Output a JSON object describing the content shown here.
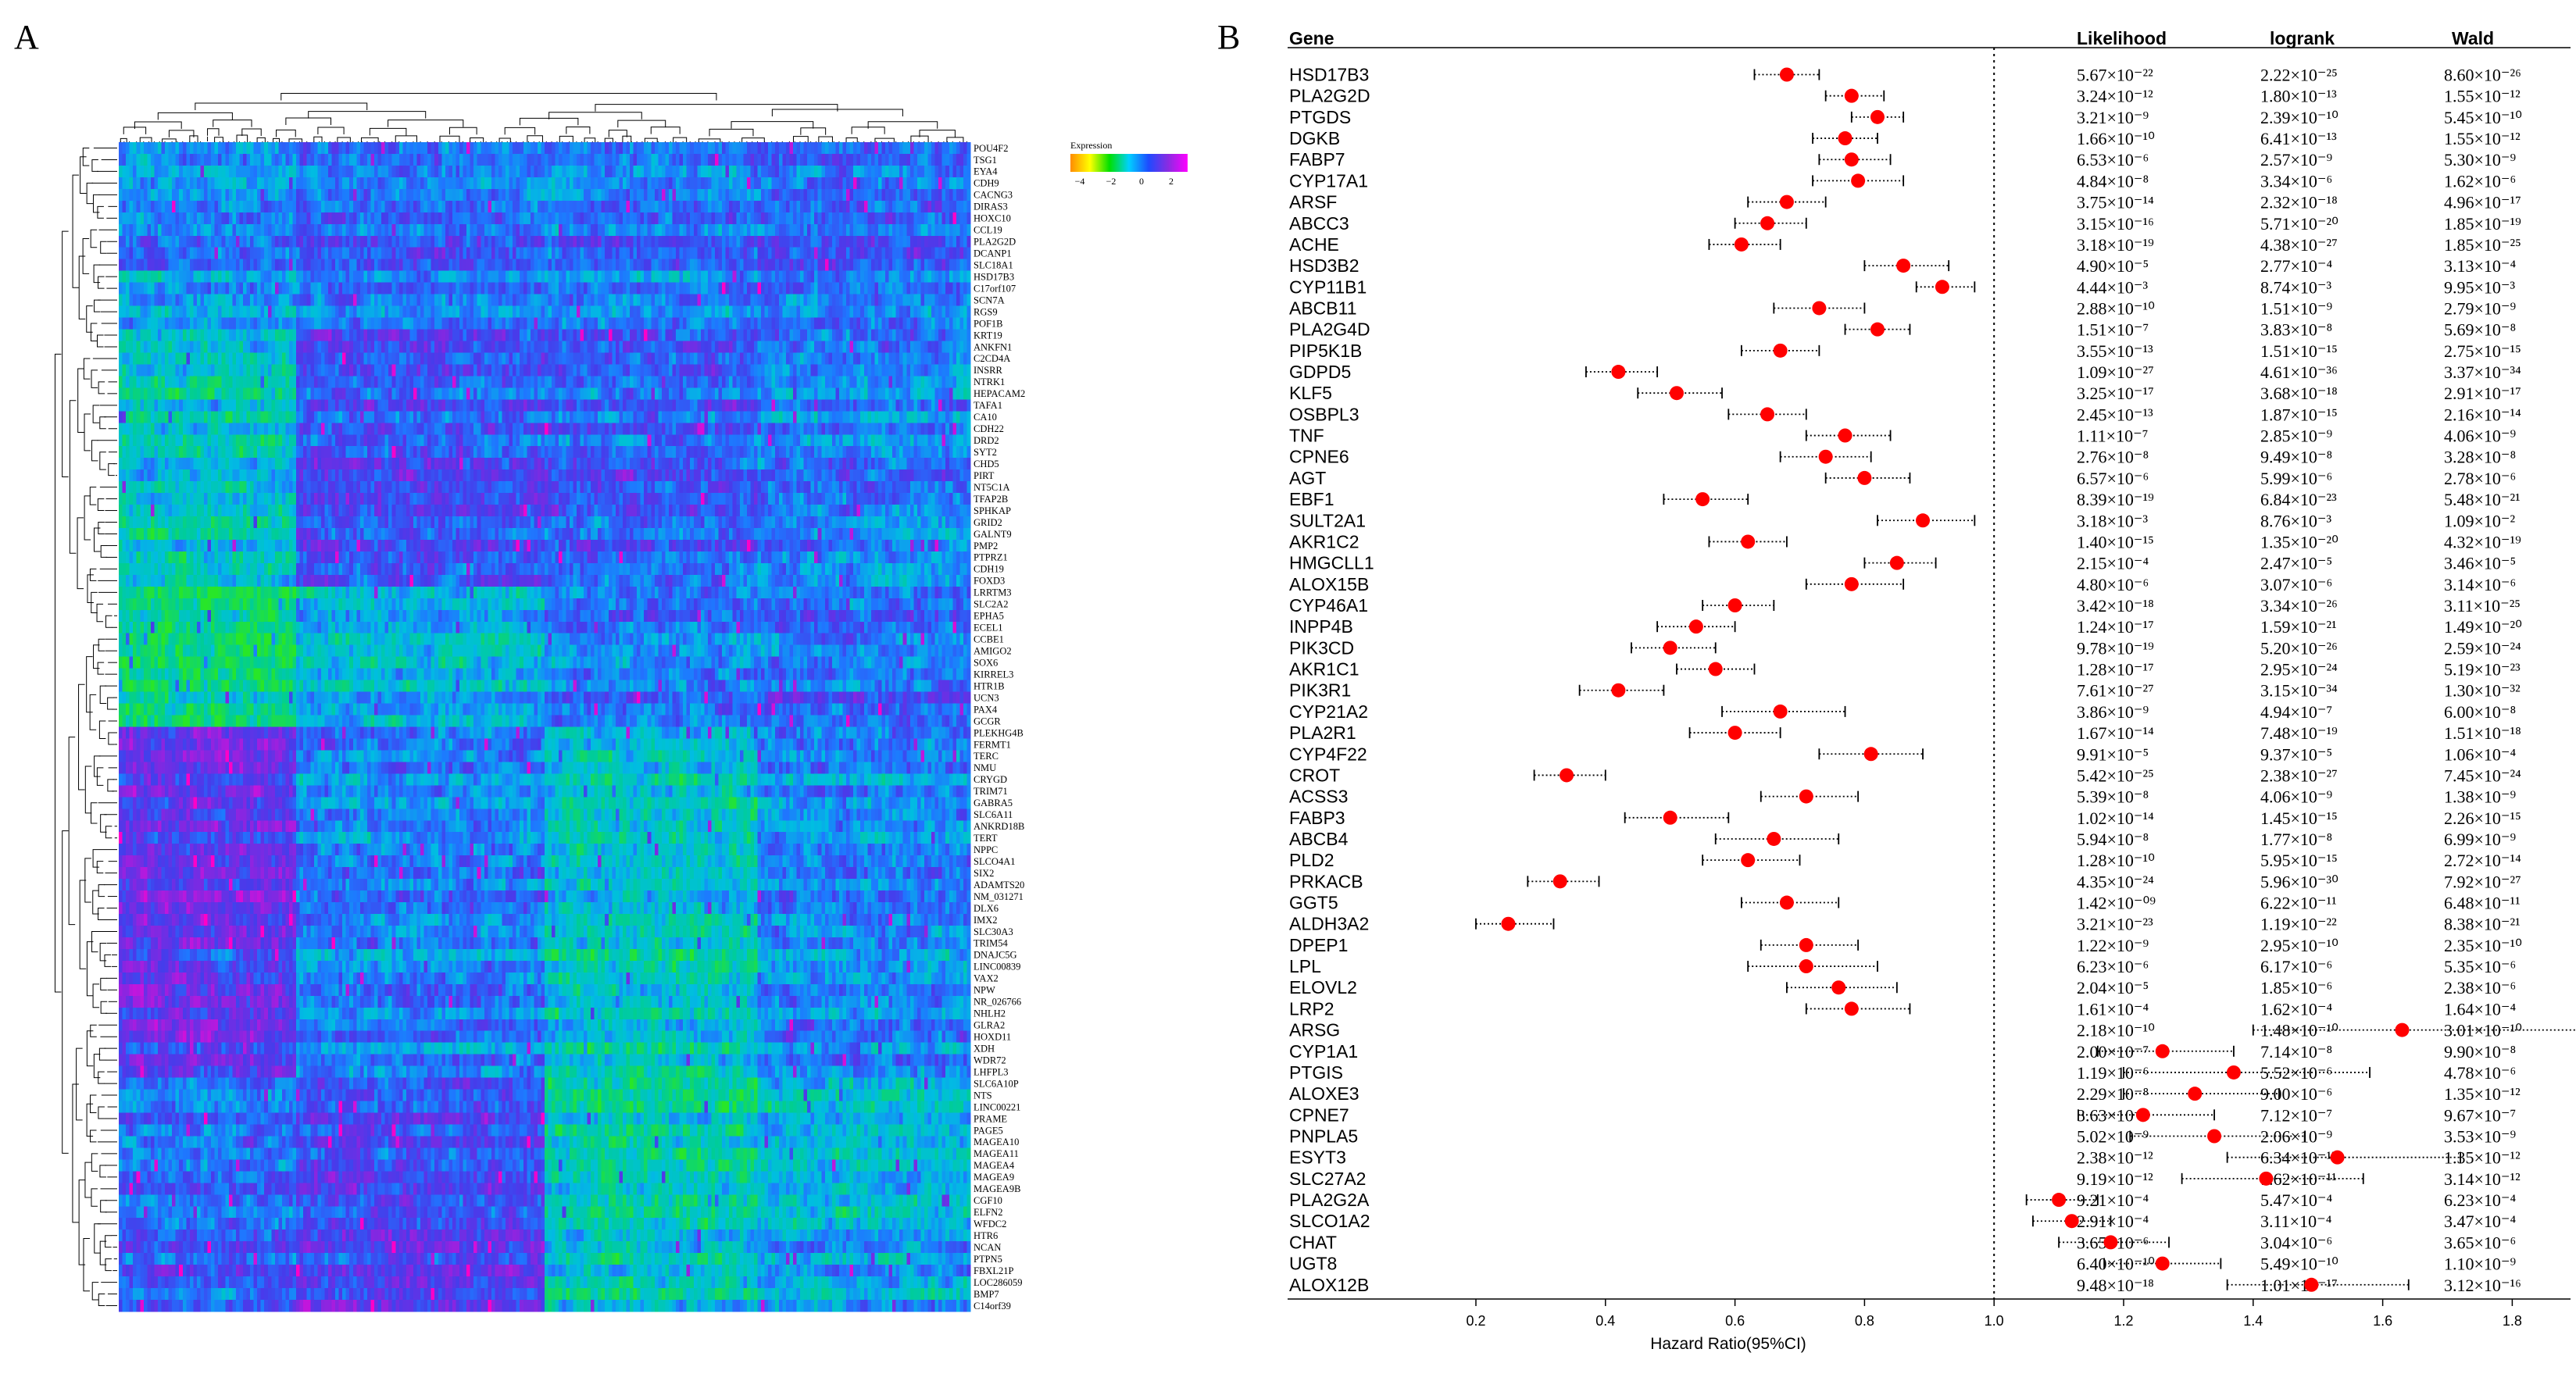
{
  "panels": {
    "a": "A",
    "b": "B"
  },
  "heatmap": {
    "legend": {
      "title": "Expression",
      "ticks": [
        "−4",
        "−2",
        "0",
        "2"
      ],
      "colors": [
        "#ff8c00",
        "#ffff00",
        "#00e000",
        "#00d0ff",
        "#1e4bff",
        "#8a2be2",
        "#ff00ff"
      ]
    },
    "genes": [
      "POU4F2",
      "TSG1",
      "EYA4",
      "CDH9",
      "CACNG3",
      "DIRAS3",
      "HOXC10",
      "CCL19",
      "PLA2G2D",
      "DCANP1",
      "SLC18A1",
      "HSD17B3",
      "C17orf107",
      "SCN7A",
      "RGS9",
      "POF1B",
      "KRT19",
      "ANKFN1",
      "C2CD4A",
      "INSRR",
      "NTRK1",
      "HEPACAM2",
      "TAFA1",
      "CA10",
      "CDH22",
      "DRD2",
      "SYT2",
      "CHD5",
      "PIRT",
      "NT5C1A",
      "TFAP2B",
      "SPHKAP",
      "GRID2",
      "GALNT9",
      "PMP2",
      "PTPRZ1",
      "CDH19",
      "FOXD3",
      "LRRTM3",
      "SLC2A2",
      "EPHA5",
      "ECEL1",
      "CCBE1",
      "AMIGO2",
      "SOX6",
      "KIRREL3",
      "HTR1B",
      "UCN3",
      "PAX4",
      "GCGR",
      "PLEKHG4B",
      "FERMT1",
      "TERC",
      "NMU",
      "CRYGD",
      "TRIM71",
      "GABRA5",
      "SLC6A11",
      "ANKRD18B",
      "TERT",
      "NPPC",
      "SLCO4A1",
      "SIX2",
      "ADAMTS20",
      "NM_031271",
      "DLX6",
      "IMX2",
      "SLC30A3",
      "TRIM54",
      "DNAJC5G",
      "LINC00839",
      "VAX2",
      "NPW",
      "NR_026766",
      "NHLH2",
      "GLRA2",
      "HOXD11",
      "XDH",
      "WDR72",
      "LHFPL3",
      "SLC6A10P",
      "NTS",
      "LINC00221",
      "PRAME",
      "PAGE5",
      "MAGEA10",
      "MAGEA11",
      "MAGEA4",
      "MAGEA9",
      "MAGEA9B",
      "CGF10",
      "ELFN2",
      "WFDC2",
      "HTR6",
      "NCAN",
      "PTPN5",
      "FBXL21P",
      "LOC286059",
      "BMP7",
      "C14orf39"
    ]
  },
  "forest": {
    "headers": {
      "gene": "Gene",
      "likelihood": "Likelihood",
      "logrank": "logrank",
      "wald": "Wald"
    },
    "xlabel": "Hazard Ratio(95%CI)",
    "ticks": [
      "0.2",
      "0.4",
      "0.6",
      "0.8",
      "1.0",
      "1.2",
      "1.4",
      "1.6",
      "1.8"
    ],
    "reference_line": 1.0,
    "point_color": "#ff0000"
  },
  "chart_data": [
    {
      "type": "heatmap",
      "xlabel": "",
      "ylabel": "",
      "colorbar_label": "Expression",
      "colorbar_ticks": [
        -4,
        -2,
        0,
        2
      ]
    },
    {
      "type": "forest",
      "xlabel": "Hazard Ratio(95%CI)",
      "xlim": [
        0.1,
        1.85
      ],
      "xticks": [
        0.2,
        0.4,
        0.6,
        0.8,
        1.0,
        1.2,
        1.4,
        1.6,
        1.8
      ],
      "reference_line": 1.0,
      "columns": [
        "Gene",
        "Likelihood",
        "logrank",
        "Wald"
      ],
      "rows": [
        {
          "gene": "HSD17B3",
          "hr": 0.68,
          "lo": 0.63,
          "hi": 0.73,
          "likelihood": "5.67×10⁻²²",
          "logrank": "2.22×10⁻²⁵",
          "wald": "8.60×10⁻²⁶"
        },
        {
          "gene": "PLA2G2D",
          "hr": 0.78,
          "lo": 0.74,
          "hi": 0.83,
          "likelihood": "3.24×10⁻¹²",
          "logrank": "1.80×10⁻¹³",
          "wald": "1.55×10⁻¹²"
        },
        {
          "gene": "PTGDS",
          "hr": 0.82,
          "lo": 0.78,
          "hi": 0.86,
          "likelihood": "3.21×10⁻⁹",
          "logrank": "2.39×10⁻¹⁰",
          "wald": "5.45×10⁻¹⁰"
        },
        {
          "gene": "DGKB",
          "hr": 0.77,
          "lo": 0.72,
          "hi": 0.82,
          "likelihood": "1.66×10⁻¹⁰",
          "logrank": "6.41×10⁻¹³",
          "wald": "1.55×10⁻¹²"
        },
        {
          "gene": "FABP7",
          "hr": 0.78,
          "lo": 0.73,
          "hi": 0.84,
          "likelihood": "6.53×10⁻⁶",
          "logrank": "2.57×10⁻⁹",
          "wald": "5.30×10⁻⁹"
        },
        {
          "gene": "CYP17A1",
          "hr": 0.79,
          "lo": 0.72,
          "hi": 0.86,
          "likelihood": "4.84×10⁻⁸",
          "logrank": "3.34×10⁻⁶",
          "wald": "1.62×10⁻⁶"
        },
        {
          "gene": "ARSF",
          "hr": 0.68,
          "lo": 0.62,
          "hi": 0.74,
          "likelihood": "3.75×10⁻¹⁴",
          "logrank": "2.32×10⁻¹⁸",
          "wald": "4.96×10⁻¹⁷"
        },
        {
          "gene": "ABCC3",
          "hr": 0.65,
          "lo": 0.6,
          "hi": 0.71,
          "likelihood": "3.15×10⁻¹⁶",
          "logrank": "5.71×10⁻²⁰",
          "wald": "1.85×10⁻¹⁹"
        },
        {
          "gene": "ACHE",
          "hr": 0.61,
          "lo": 0.56,
          "hi": 0.67,
          "likelihood": "3.18×10⁻¹⁹",
          "logrank": "4.38×10⁻²⁷",
          "wald": "1.85×10⁻²⁵"
        },
        {
          "gene": "HSD3B2",
          "hr": 0.86,
          "lo": 0.8,
          "hi": 0.93,
          "likelihood": "4.90×10⁻⁵",
          "logrank": "2.77×10⁻⁴",
          "wald": "3.13×10⁻⁴"
        },
        {
          "gene": "CYP11B1",
          "hr": 0.92,
          "lo": 0.88,
          "hi": 0.97,
          "likelihood": "4.44×10⁻³",
          "logrank": "8.74×10⁻³",
          "wald": "9.95×10⁻³"
        },
        {
          "gene": "ABCB11",
          "hr": 0.73,
          "lo": 0.66,
          "hi": 0.8,
          "likelihood": "2.88×10⁻¹⁰",
          "logrank": "1.51×10⁻⁹",
          "wald": "2.79×10⁻⁹"
        },
        {
          "gene": "PLA2G4D",
          "hr": 0.82,
          "lo": 0.77,
          "hi": 0.87,
          "likelihood": "1.51×10⁻⁷",
          "logrank": "3.83×10⁻⁸",
          "wald": "5.69×10⁻⁸"
        },
        {
          "gene": "PIP5K1B",
          "hr": 0.67,
          "lo": 0.61,
          "hi": 0.73,
          "likelihood": "3.55×10⁻¹³",
          "logrank": "1.51×10⁻¹⁵",
          "wald": "2.75×10⁻¹⁵"
        },
        {
          "gene": "GDPD5",
          "hr": 0.42,
          "lo": 0.37,
          "hi": 0.48,
          "likelihood": "1.09×10⁻²⁷",
          "logrank": "4.61×10⁻³⁶",
          "wald": "3.37×10⁻³⁴"
        },
        {
          "gene": "KLF5",
          "hr": 0.51,
          "lo": 0.45,
          "hi": 0.58,
          "likelihood": "3.25×10⁻¹⁷",
          "logrank": "3.68×10⁻¹⁸",
          "wald": "2.91×10⁻¹⁷"
        },
        {
          "gene": "OSBPL3",
          "hr": 0.65,
          "lo": 0.59,
          "hi": 0.71,
          "likelihood": "2.45×10⁻¹³",
          "logrank": "1.87×10⁻¹⁵",
          "wald": "2.16×10⁻¹⁴"
        },
        {
          "gene": "TNF",
          "hr": 0.77,
          "lo": 0.71,
          "hi": 0.84,
          "likelihood": "1.11×10⁻⁷",
          "logrank": "2.85×10⁻⁹",
          "wald": "4.06×10⁻⁹"
        },
        {
          "gene": "CPNE6",
          "hr": 0.74,
          "lo": 0.67,
          "hi": 0.81,
          "likelihood": "2.76×10⁻⁸",
          "logrank": "9.49×10⁻⁸",
          "wald": "3.28×10⁻⁸"
        },
        {
          "gene": "AGT",
          "hr": 0.8,
          "lo": 0.74,
          "hi": 0.87,
          "likelihood": "6.57×10⁻⁶",
          "logrank": "5.99×10⁻⁶",
          "wald": "2.78×10⁻⁶"
        },
        {
          "gene": "EBF1",
          "hr": 0.55,
          "lo": 0.49,
          "hi": 0.62,
          "likelihood": "8.39×10⁻¹⁹",
          "logrank": "6.84×10⁻²³",
          "wald": "5.48×10⁻²¹"
        },
        {
          "gene": "SULT2A1",
          "hr": 0.89,
          "lo": 0.82,
          "hi": 0.97,
          "likelihood": "3.18×10⁻³",
          "logrank": "8.76×10⁻³",
          "wald": "1.09×10⁻²"
        },
        {
          "gene": "AKR1C2",
          "hr": 0.62,
          "lo": 0.56,
          "hi": 0.68,
          "likelihood": "1.40×10⁻¹⁵",
          "logrank": "1.35×10⁻²⁰",
          "wald": "4.32×10⁻¹⁹"
        },
        {
          "gene": "HMGCLL1",
          "hr": 0.85,
          "lo": 0.8,
          "hi": 0.91,
          "likelihood": "2.15×10⁻⁴",
          "logrank": "2.47×10⁻⁵",
          "wald": "3.46×10⁻⁵"
        },
        {
          "gene": "ALOX15B",
          "hr": 0.78,
          "lo": 0.71,
          "hi": 0.86,
          "likelihood": "4.80×10⁻⁶",
          "logrank": "3.07×10⁻⁶",
          "wald": "3.14×10⁻⁶"
        },
        {
          "gene": "CYP46A1",
          "hr": 0.6,
          "lo": 0.55,
          "hi": 0.66,
          "likelihood": "3.42×10⁻¹⁸",
          "logrank": "3.34×10⁻²⁶",
          "wald": "3.11×10⁻²⁵"
        },
        {
          "gene": "INPP4B",
          "hr": 0.54,
          "lo": 0.48,
          "hi": 0.6,
          "likelihood": "1.24×10⁻¹⁷",
          "logrank": "1.59×10⁻²¹",
          "wald": "1.49×10⁻²⁰"
        },
        {
          "gene": "PIK3CD",
          "hr": 0.5,
          "lo": 0.44,
          "hi": 0.57,
          "likelihood": "9.78×10⁻¹⁹",
          "logrank": "5.20×10⁻²⁶",
          "wald": "2.59×10⁻²⁴"
        },
        {
          "gene": "AKR1C1",
          "hr": 0.57,
          "lo": 0.51,
          "hi": 0.63,
          "likelihood": "1.28×10⁻¹⁷",
          "logrank": "2.95×10⁻²⁴",
          "wald": "5.19×10⁻²³"
        },
        {
          "gene": "PIK3R1",
          "hr": 0.42,
          "lo": 0.36,
          "hi": 0.49,
          "likelihood": "7.61×10⁻²⁷",
          "logrank": "3.15×10⁻³⁴",
          "wald": "1.30×10⁻³²"
        },
        {
          "gene": "CYP21A2",
          "hr": 0.67,
          "lo": 0.58,
          "hi": 0.77,
          "likelihood": "3.86×10⁻⁹",
          "logrank": "4.94×10⁻⁷",
          "wald": "6.00×10⁻⁸"
        },
        {
          "gene": "PLA2R1",
          "hr": 0.6,
          "lo": 0.53,
          "hi": 0.67,
          "likelihood": "1.67×10⁻¹⁴",
          "logrank": "7.48×10⁻¹⁹",
          "wald": "1.51×10⁻¹⁸"
        },
        {
          "gene": "CYP4F22",
          "hr": 0.81,
          "lo": 0.73,
          "hi": 0.89,
          "likelihood": "9.91×10⁻⁵",
          "logrank": "9.37×10⁻⁵",
          "wald": "1.06×10⁻⁴"
        },
        {
          "gene": "CROT",
          "hr": 0.34,
          "lo": 0.29,
          "hi": 0.4,
          "likelihood": "5.42×10⁻²⁵",
          "logrank": "2.38×10⁻²⁷",
          "wald": "7.45×10⁻²⁴"
        },
        {
          "gene": "ACSS3",
          "hr": 0.71,
          "lo": 0.64,
          "hi": 0.79,
          "likelihood": "5.39×10⁻⁸",
          "logrank": "4.06×10⁻⁹",
          "wald": "1.38×10⁻⁹"
        },
        {
          "gene": "FABP3",
          "hr": 0.5,
          "lo": 0.43,
          "hi": 0.59,
          "likelihood": "1.02×10⁻¹⁴",
          "logrank": "1.45×10⁻¹⁵",
          "wald": "2.26×10⁻¹⁵"
        },
        {
          "gene": "ABCB4",
          "hr": 0.66,
          "lo": 0.57,
          "hi": 0.76,
          "likelihood": "5.94×10⁻⁸",
          "logrank": "1.77×10⁻⁸",
          "wald": "6.99×10⁻⁹"
        },
        {
          "gene": "PLD2",
          "hr": 0.62,
          "lo": 0.55,
          "hi": 0.7,
          "likelihood": "1.28×10⁻¹⁰",
          "logrank": "5.95×10⁻¹⁵",
          "wald": "2.72×10⁻¹⁴"
        },
        {
          "gene": "PRKACB",
          "hr": 0.33,
          "lo": 0.28,
          "hi": 0.39,
          "likelihood": "4.35×10⁻²⁴",
          "logrank": "5.96×10⁻³⁰",
          "wald": "7.92×10⁻²⁷"
        },
        {
          "gene": "GGT5",
          "hr": 0.68,
          "lo": 0.61,
          "hi": 0.76,
          "likelihood": "1.42×10⁻⁰⁹",
          "logrank": "6.22×10⁻¹¹",
          "wald": "6.48×10⁻¹¹"
        },
        {
          "gene": "ALDH3A2",
          "hr": 0.25,
          "lo": 0.2,
          "hi": 0.32,
          "likelihood": "3.21×10⁻²³",
          "logrank": "1.19×10⁻²²",
          "wald": "8.38×10⁻²¹"
        },
        {
          "gene": "DPEP1",
          "hr": 0.71,
          "lo": 0.64,
          "hi": 0.79,
          "likelihood": "1.22×10⁻⁹",
          "logrank": "2.95×10⁻¹⁰",
          "wald": "2.35×10⁻¹⁰"
        },
        {
          "gene": "LPL",
          "hr": 0.71,
          "lo": 0.62,
          "hi": 0.82,
          "likelihood": "6.23×10⁻⁶",
          "logrank": "6.17×10⁻⁶",
          "wald": "5.35×10⁻⁶"
        },
        {
          "gene": "ELOVL2",
          "hr": 0.76,
          "lo": 0.68,
          "hi": 0.85,
          "likelihood": "2.04×10⁻⁵",
          "logrank": "1.85×10⁻⁶",
          "wald": "2.38×10⁻⁶"
        },
        {
          "gene": "LRP2",
          "hr": 0.78,
          "lo": 0.71,
          "hi": 0.87,
          "likelihood": "1.61×10⁻⁴",
          "logrank": "1.62×10⁻⁴",
          "wald": "1.64×10⁻⁴"
        },
        {
          "gene": "ARSG",
          "hr": 1.63,
          "lo": 1.4,
          "hi": 1.9,
          "likelihood": "2.18×10⁻¹⁰",
          "logrank": "1.48×10⁻¹⁰",
          "wald": "3.01×10⁻¹⁰"
        },
        {
          "gene": "CYP1A1",
          "hr": 1.26,
          "lo": 1.16,
          "hi": 1.37,
          "likelihood": "2.00×10⁻⁷",
          "logrank": "7.14×10⁻⁸",
          "wald": "9.90×10⁻⁸"
        },
        {
          "gene": "PTGIS",
          "hr": 1.37,
          "lo": 1.2,
          "hi": 1.58,
          "likelihood": "1.19×10⁻⁶",
          "logrank": "5.52×10⁻⁶",
          "wald": "4.78×10⁻⁶"
        },
        {
          "gene": "ALOXE3",
          "hr": 1.31,
          "lo": 1.2,
          "hi": 1.44,
          "likelihood": "2.29×10⁻⁸",
          "logrank": "9.00×10⁻⁶",
          "wald": "1.35×10⁻¹²"
        },
        {
          "gene": "CPNE7",
          "hr": 1.23,
          "lo": 1.13,
          "hi": 1.34,
          "likelihood": "3.63×10⁻⁷",
          "logrank": "7.12×10⁻⁷",
          "wald": "9.67×10⁻⁷"
        },
        {
          "gene": "PNPLA5",
          "hr": 1.34,
          "lo": 1.21,
          "hi": 1.48,
          "likelihood": "5.02×10⁻⁹",
          "logrank": "2.06×10⁻⁹",
          "wald": "3.53×10⁻⁹"
        },
        {
          "gene": "ESYT3",
          "hr": 1.53,
          "lo": 1.36,
          "hi": 1.72,
          "likelihood": "2.38×10⁻¹²",
          "logrank": "6.34×10⁻¹³",
          "wald": "1.35×10⁻¹²"
        },
        {
          "gene": "SLC27A2",
          "hr": 1.42,
          "lo": 1.29,
          "hi": 1.57,
          "likelihood": "9.19×10⁻¹²",
          "logrank": "1.62×10⁻¹¹",
          "wald": "3.14×10⁻¹²"
        },
        {
          "gene": "PLA2G2A",
          "hr": 1.1,
          "lo": 1.05,
          "hi": 1.16,
          "likelihood": "9.21×10⁻⁴",
          "logrank": "5.47×10⁻⁴",
          "wald": "6.23×10⁻⁴"
        },
        {
          "gene": "SLCO1A2",
          "hr": 1.12,
          "lo": 1.06,
          "hi": 1.18,
          "likelihood": "2.91×10⁻⁴",
          "logrank": "3.11×10⁻⁴",
          "wald": "3.47×10⁻⁴"
        },
        {
          "gene": "CHAT",
          "hr": 1.18,
          "lo": 1.1,
          "hi": 1.27,
          "likelihood": "3.65×10⁻⁶",
          "logrank": "3.04×10⁻⁶",
          "wald": "3.65×10⁻⁶"
        },
        {
          "gene": "UGT8",
          "hr": 1.26,
          "lo": 1.17,
          "hi": 1.35,
          "likelihood": "6.40×10⁻¹⁰",
          "logrank": "5.49×10⁻¹⁰",
          "wald": "1.10×10⁻⁹"
        },
        {
          "gene": "ALOX12B",
          "hr": 1.49,
          "lo": 1.36,
          "hi": 1.64,
          "likelihood": "9.48×10⁻¹⁸",
          "logrank": "1.01×10⁻¹⁷",
          "wald": "3.12×10⁻¹⁶"
        }
      ]
    }
  ]
}
